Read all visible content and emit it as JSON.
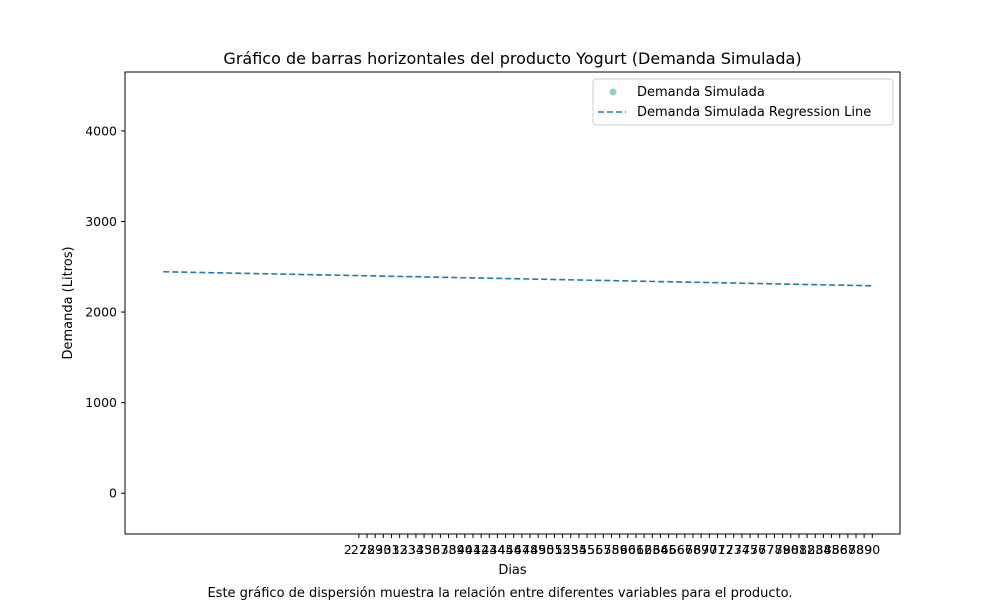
{
  "chart_data": {
    "type": "scatter",
    "title": "Gráfico de barras horizontales del producto Yogurt (Demanda Simulada)",
    "xlabel": "Dias",
    "ylabel": "Demanda (Litros)",
    "caption": "Este gráfico de dispersión muestra la relación entre diferentes variables para el producto.",
    "xlim": [
      -1.7,
      93.4
    ],
    "ylim": [
      -450,
      4650
    ],
    "yticks": [
      0,
      1000,
      2000,
      3000,
      4000
    ],
    "xticks": [
      27,
      28,
      29,
      30,
      31,
      32,
      33,
      34,
      35,
      36,
      37,
      38,
      39,
      40,
      41,
      42,
      43,
      44,
      45,
      46,
      47,
      48,
      49,
      50,
      51,
      52,
      53,
      54,
      55,
      56,
      57,
      58,
      59,
      60,
      61,
      62,
      63,
      64,
      65,
      66,
      67,
      68,
      69,
      70,
      71,
      72,
      73,
      74,
      75,
      76,
      77,
      78,
      79,
      80,
      81,
      82,
      83,
      84,
      85,
      86,
      87,
      88,
      89,
      90
    ],
    "xtick_labels": [
      "27",
      "28",
      "29",
      "30",
      "31",
      "32",
      "33",
      "34",
      "35",
      "36",
      "37",
      "38",
      "39",
      "40",
      "41",
      "42",
      "43",
      "44",
      "45",
      "46",
      "47",
      "48",
      "49",
      "50",
      "51",
      "52",
      "53",
      "54",
      "55",
      "56",
      "57",
      "58",
      "59",
      "60",
      "61",
      "62",
      "63",
      "64",
      "65",
      "66",
      "67",
      "68",
      "69",
      "70",
      "71",
      "72",
      "73",
      "74",
      "75",
      "76",
      "77",
      "78",
      "79",
      "80",
      "81",
      "82",
      "83",
      "84",
      "85",
      "86",
      "87",
      "88",
      "89",
      "90"
    ],
    "x_start_label": "2",
    "series": [
      {
        "name": "Demanda Simulada",
        "kind": "scatter",
        "color": "#8ecfc9",
        "points": []
      },
      {
        "name": "Demanda Simulada Regression Line",
        "kind": "line",
        "style": "dashed",
        "color": "#1f77b4",
        "x": [
          3,
          90
        ],
        "y": [
          2445,
          2290
        ]
      }
    ],
    "legend_position": "top-right",
    "grid": false
  }
}
